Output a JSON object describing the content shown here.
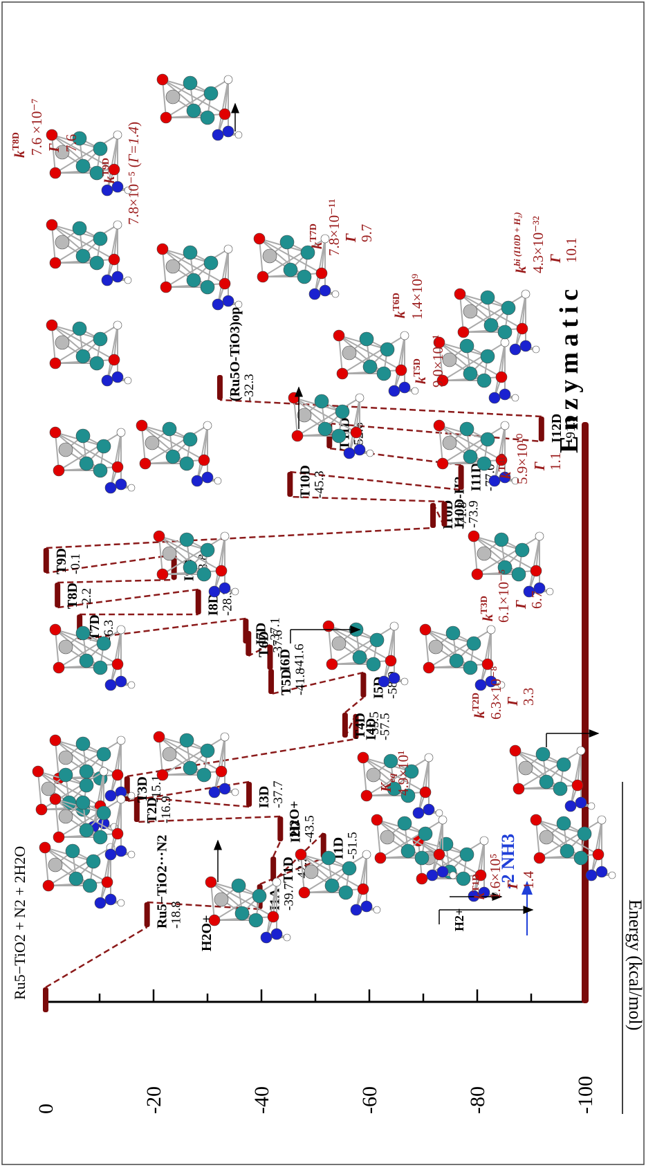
{
  "colors": {
    "level": "#7a0a0a",
    "connector": "#8b1a1a",
    "label": "#000000",
    "rate": "#9b1c1c",
    "nh3": "#1f3fd8",
    "oxygen": "#e00000",
    "titanium": "#1f8f8f",
    "ruthenium": "#b8b8b8",
    "nitrogen": "#1a22d0",
    "hydrogen": "#ffffff"
  },
  "axis": {
    "label": "Energy (kcal/mol)",
    "min": -100,
    "max": 0,
    "ticks": [
      "0",
      "-20",
      "-40",
      "-60",
      "-80",
      "-100"
    ]
  },
  "pathway_title": "Enzymatic",
  "reactant_label": "Ru5−TiO2 + N2 + 2H2O",
  "levels": [
    {
      "name": "start",
      "label": "",
      "energy": "",
      "e": 0
    },
    {
      "name": "ru5-tio2-n2",
      "label": "Ru5−TiO2···N2",
      "energy": "-18.8",
      "e": -18.8
    },
    {
      "name": "I1A",
      "label": "I1A",
      "energy": "-39.7",
      "e": -39.7
    },
    {
      "name": "I1D",
      "label": "I1D",
      "energy": "-51.5",
      "e": -51.5
    },
    {
      "name": "T1D",
      "label": "T1D",
      "energy": "-42.2",
      "e": -42.2
    },
    {
      "name": "I2D",
      "label": "I2D",
      "energy": "-43.5",
      "e": -43.5
    },
    {
      "name": "T2D",
      "label": "T2D",
      "energy": "-16.9",
      "e": -16.9
    },
    {
      "name": "I3D",
      "label": "I3D",
      "energy": "-37.7",
      "e": -37.7
    },
    {
      "name": "T3D",
      "label": "T3D",
      "energy": "-15.1",
      "e": -15.1
    },
    {
      "name": "I4D",
      "label": "I4D",
      "energy": "-57.5",
      "e": -57.5
    },
    {
      "name": "T4D",
      "label": "T4D",
      "energy": "-55.5",
      "e": -55.5
    },
    {
      "name": "I5D",
      "label": "I5D",
      "energy": "-58.9",
      "e": -58.9
    },
    {
      "name": "T5D",
      "label": "T5D",
      "energy": "-41.8",
      "e": -41.8
    },
    {
      "name": "I6D",
      "label": "I6D",
      "energy": "-41.6",
      "e": -41.6
    },
    {
      "name": "T6D",
      "label": "T6D",
      "energy": "-37.6",
      "e": -37.6
    },
    {
      "name": "I7D",
      "label": "I7D",
      "energy": "-37.1",
      "e": -37.1
    },
    {
      "name": "T7D",
      "label": "T7D",
      "energy": "-6.3",
      "e": -6.3
    },
    {
      "name": "I8D",
      "label": "I8D",
      "energy": "-28.3",
      "e": -28.3
    },
    {
      "name": "T8D",
      "label": "T8D",
      "energy": "-2.2",
      "e": -2.2
    },
    {
      "name": "I9D",
      "label": "I9D",
      "energy": "-23.8",
      "e": -23.8
    },
    {
      "name": "T9D",
      "label": "T9D",
      "energy": "-0.1",
      "e": -0.1
    },
    {
      "name": "I10D",
      "label": "I10D",
      "energy": "-71.8",
      "e": -71.8
    },
    {
      "name": "I10D-H2",
      "label": "I10D-H2",
      "energy": "-73.9",
      "e": -73.9
    },
    {
      "name": "T10D",
      "label": "T10D",
      "energy": "-45.3",
      "e": -45.3
    },
    {
      "name": "I11D",
      "label": "I11D",
      "energy": "-77.0",
      "e": -77.0
    },
    {
      "name": "T11D",
      "label": "T11D",
      "energy": "-52.6",
      "e": -52.6
    },
    {
      "name": "I12D",
      "label": "I12D",
      "energy": "-91.9",
      "e": -91.9
    },
    {
      "name": "Ru5O-TiO3",
      "label": "(Ru5O-TiO3)op",
      "energy": "-32.3",
      "e": -32.3
    },
    {
      "name": "end",
      "label": "",
      "energy": "",
      "e": -100
    }
  ],
  "side_labels": {
    "h2o_plus_1": "H2O+",
    "h2o_plus_2": "H2O+",
    "h2_plus": "H2+",
    "minus_2nh3": "-2 NH3"
  },
  "rate_annotations": [
    {
      "key": "T1D",
      "k": "1.6×10⁵",
      "gamma": "1.4"
    },
    {
      "key": "eq",
      "k": "4.9×10¹",
      "gamma": ""
    },
    {
      "key": "T2D",
      "k": "6.3×10⁻⁸",
      "gamma": "3.3"
    },
    {
      "key": "T3D",
      "k": "6.1×10⁻⁵",
      "gamma": "6.7"
    },
    {
      "key": "T4D",
      "k": "5.9×10¹⁰",
      "gamma": "1.1"
    },
    {
      "key": "T5D",
      "k": "9.0×10⁻¹",
      "gamma": ""
    },
    {
      "key": "T6D",
      "k": "1.4×10⁹",
      "gamma": ""
    },
    {
      "key": "T7D",
      "k": "7.8×10⁻¹¹",
      "gamma": "9.7"
    },
    {
      "key": "bi",
      "k": "4.3×10⁻³²",
      "gamma": "10.1"
    },
    {
      "key": "T8D",
      "k": "7.6 ×10⁻⁷",
      "gamma": "7.6"
    },
    {
      "key": "T9D",
      "k": "7.8×10⁻⁵",
      "gamma": "Γ=1.4"
    }
  ]
}
